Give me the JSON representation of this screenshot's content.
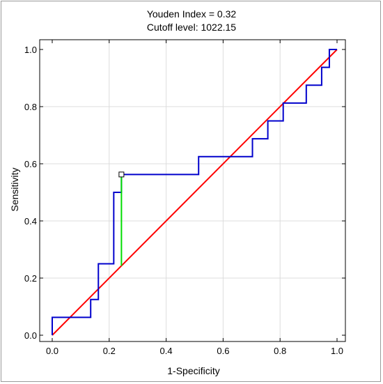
{
  "chart_data": {
    "type": "line",
    "title_lines": [
      "Youden Index  = 0.32",
      "Cutoff level: 1022.15"
    ],
    "xlabel": "1-Specificity",
    "ylabel": "Sensitivity",
    "xlim": [
      0,
      1
    ],
    "ylim": [
      0,
      1
    ],
    "xticks": [
      "0.0",
      "0.2",
      "0.4",
      "0.6",
      "0.8",
      "1.0"
    ],
    "yticks": [
      "0.0",
      "0.2",
      "0.4",
      "0.6",
      "0.8",
      "1.0"
    ],
    "grid": true,
    "series": [
      {
        "color": "#0000cc",
        "x": [
          0,
          0,
          0.135,
          0.135,
          0.162,
          0.162,
          0.216,
          0.216,
          0.243,
          0.243,
          0.514,
          0.514,
          0.703,
          0.703,
          0.757,
          0.757,
          0.811,
          0.811,
          0.892,
          0.892,
          0.946,
          0.946,
          0.973,
          0.973,
          1.0
        ],
        "y": [
          0,
          0.0625,
          0.0625,
          0.125,
          0.125,
          0.25,
          0.25,
          0.5,
          0.5,
          0.5625,
          0.5625,
          0.625,
          0.625,
          0.6875,
          0.6875,
          0.75,
          0.75,
          0.8125,
          0.8125,
          0.875,
          0.875,
          0.9375,
          0.9375,
          1.0,
          1.0
        ]
      },
      {
        "color": "#ff0000",
        "x": [
          0,
          1
        ],
        "y": [
          0,
          1
        ]
      }
    ],
    "youden_segment": {
      "color": "#00dd00",
      "x": 0.243,
      "y_from": 0.243,
      "y_to": 0.5625
    },
    "optimal_point": {
      "x": 0.243,
      "y": 0.5625
    }
  }
}
